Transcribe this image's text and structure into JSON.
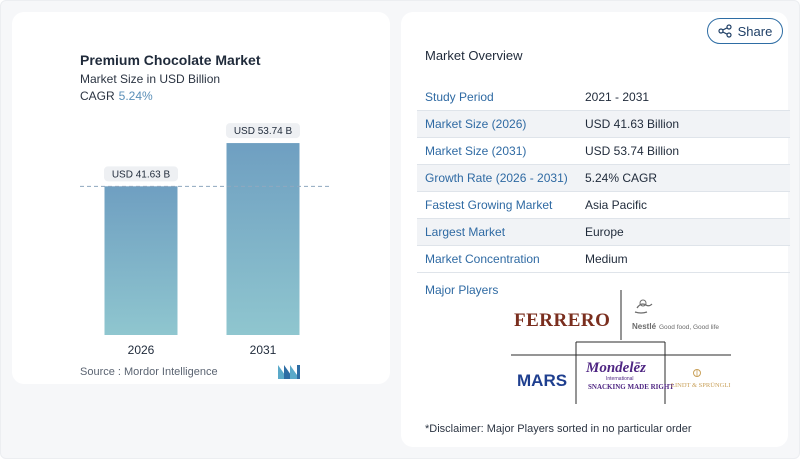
{
  "chart": {
    "title": "Premium Chocolate Market",
    "subtitle": "Market Size in USD Billion",
    "cagr_label": "CAGR",
    "cagr_value": "5.24%",
    "source": "Source :  Mordor Intelligence"
  },
  "chart_data": {
    "type": "bar",
    "categories": [
      "2026",
      "2031"
    ],
    "values": [
      41.63,
      53.74
    ],
    "data_labels": [
      "USD 41.63 B",
      "USD 53.74 B"
    ],
    "title": "Premium Chocolate Market",
    "subtitle": "Market Size in USD Billion",
    "bar_color": "#6f9fc1",
    "bar_color_bottom": "#8fc6cf",
    "reference_line": 41.63,
    "ylim": [
      0,
      56
    ],
    "grid": false
  },
  "share": {
    "label": "Share",
    "icon": "share-icon"
  },
  "overview": {
    "title": "Market Overview",
    "rows": [
      {
        "key": "Study Period",
        "value": "2021 - 2031"
      },
      {
        "key": "Market Size (2026)",
        "value": "USD 41.63 Billion"
      },
      {
        "key": "Market Size (2031)",
        "value": "USD 53.74 Billion"
      },
      {
        "key": "Growth Rate (2026 - 2031)",
        "value": "5.24% CAGR"
      },
      {
        "key": "Fastest Growing Market",
        "value": "Asia Pacific"
      },
      {
        "key": "Largest Market",
        "value": "Europe"
      },
      {
        "key": "Market Concentration",
        "value": "Medium"
      }
    ]
  },
  "players": {
    "title": "Major Players",
    "logos": [
      {
        "name": "Ferrero",
        "text": "FERRERO",
        "color": "#7a2e1e"
      },
      {
        "name": "Nestle",
        "text": "Nestlé",
        "tagline": "Good food, Good life",
        "color": "#6b6b6b"
      },
      {
        "name": "Mars",
        "text": "MARS",
        "color": "#1f3f8f"
      },
      {
        "name": "Mondelez",
        "text": "Mondelēz",
        "sub1": "International",
        "sub2": "SNACKING MADE RIGHT",
        "color": "#4f2683"
      },
      {
        "name": "Lindt",
        "text": "LINDT & SPRÜNGLI",
        "color": "#c9a15a"
      }
    ]
  },
  "disclaimer": "*Disclaimer: Major Players sorted in no particular order",
  "colors": {
    "accent": "#2f6aa3",
    "cagr": "#5a8fb8"
  }
}
